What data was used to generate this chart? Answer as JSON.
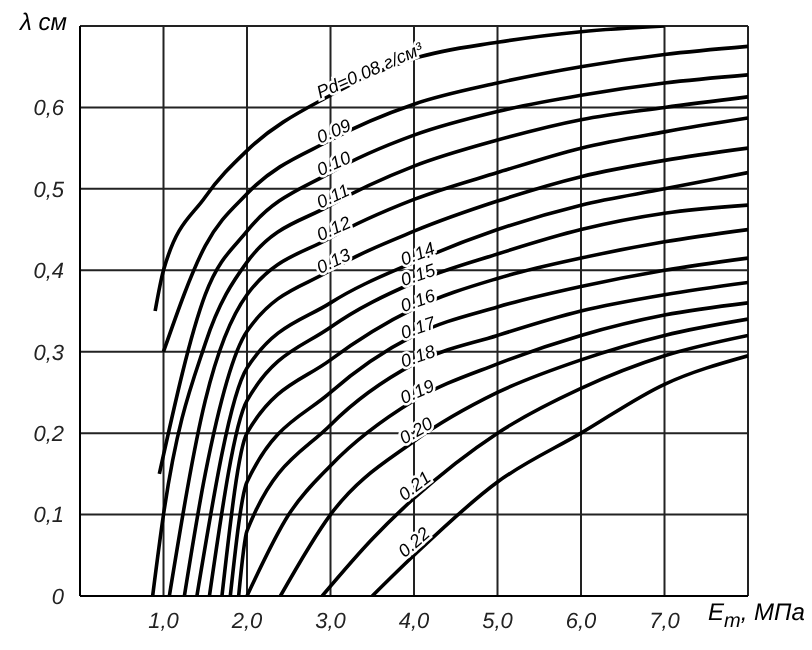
{
  "chart_data": {
    "type": "line",
    "xlabel": "E$_{т}$, МПа",
    "ylabel": "λ см",
    "xlim": [
      0,
      8
    ],
    "ylim": [
      0,
      0.7
    ],
    "xticks": [
      {
        "value": 0,
        "label": null
      },
      {
        "value": 1,
        "label": "1,0"
      },
      {
        "value": 2,
        "label": "2,0"
      },
      {
        "value": 3,
        "label": "3,0"
      },
      {
        "value": 4,
        "label": "4,0"
      },
      {
        "value": 5,
        "label": "5,0"
      },
      {
        "value": 6,
        "label": "6,0"
      },
      {
        "value": 7,
        "label": "7,0"
      },
      {
        "value": 8,
        "label": null
      }
    ],
    "yticks": [
      {
        "value": 0,
        "label": "0"
      },
      {
        "value": 0.1,
        "label": "0,1"
      },
      {
        "value": 0.2,
        "label": "0,2"
      },
      {
        "value": 0.3,
        "label": "0,3"
      },
      {
        "value": 0.4,
        "label": "0,4"
      },
      {
        "value": 0.5,
        "label": "0,5"
      },
      {
        "value": 0.6,
        "label": "0,6"
      }
    ],
    "grid": true,
    "legend": false,
    "marker": "none",
    "line_style": "solid",
    "series": [
      {
        "name": "Pd=0.08 г/см³",
        "color": "#000000",
        "x": [
          0.9,
          1,
          1.5,
          2,
          3,
          4,
          5,
          6,
          7
        ],
        "values": [
          0.35,
          0.4,
          0.49,
          0.547,
          0.615,
          0.66,
          0.68,
          0.693,
          0.7
        ]
      },
      {
        "name": "0.09",
        "color": "#000000",
        "x": [
          1,
          1.5,
          2,
          3,
          4,
          5,
          6,
          7,
          8
        ],
        "values": [
          0.3,
          0.43,
          0.494,
          0.56,
          0.604,
          0.63,
          0.65,
          0.665,
          0.675
        ]
      },
      {
        "name": "0.10",
        "color": "#000000",
        "x": [
          0.95,
          1.5,
          2,
          3,
          4,
          5,
          6,
          7,
          8
        ],
        "values": [
          0.15,
          0.37,
          0.448,
          0.52,
          0.566,
          0.595,
          0.615,
          0.63,
          0.64
        ]
      },
      {
        "name": "0.11",
        "color": "#000000",
        "x": [
          0.87,
          1,
          1.5,
          2,
          3,
          4,
          5,
          6,
          7,
          8
        ],
        "values": [
          0,
          0.1,
          0.31,
          0.41,
          0.48,
          0.528,
          0.56,
          0.585,
          0.6,
          0.613
        ]
      },
      {
        "name": "0.12",
        "color": "#000000",
        "x": [
          1.07,
          1.5,
          2,
          3,
          4,
          5,
          6,
          7,
          8
        ],
        "values": [
          0,
          0.24,
          0.37,
          0.44,
          0.487,
          0.52,
          0.55,
          0.57,
          0.587
        ]
      },
      {
        "name": "0.13",
        "color": "#000000",
        "x": [
          1.25,
          1.5,
          2,
          3,
          4,
          5,
          6,
          7,
          8
        ],
        "values": [
          0,
          0.15,
          0.325,
          0.4,
          0.448,
          0.485,
          0.515,
          0.535,
          0.55
        ]
      },
      {
        "name": "0.14",
        "color": "#000000",
        "x": [
          1.4,
          2,
          3,
          4,
          5,
          6,
          7,
          8
        ],
        "values": [
          0,
          0.28,
          0.36,
          0.41,
          0.45,
          0.48,
          0.5,
          0.52
        ]
      },
      {
        "name": "0.15",
        "color": "#000000",
        "x": [
          1.55,
          2,
          3,
          4,
          5,
          6,
          7,
          8
        ],
        "values": [
          0,
          0.24,
          0.33,
          0.385,
          0.42,
          0.45,
          0.47,
          0.48
        ]
      },
      {
        "name": "0.16",
        "color": "#000000",
        "x": [
          1.7,
          2,
          3,
          4,
          5,
          6,
          7,
          8
        ],
        "values": [
          0,
          0.2,
          0.29,
          0.353,
          0.39,
          0.415,
          0.435,
          0.45
        ]
      },
      {
        "name": "0.17",
        "color": "#000000",
        "x": [
          1.8,
          2,
          3,
          4,
          5,
          6,
          7,
          8
        ],
        "values": [
          0,
          0.14,
          0.25,
          0.32,
          0.355,
          0.38,
          0.4,
          0.415
        ]
      },
      {
        "name": "0.18",
        "color": "#000000",
        "x": [
          1.9,
          2,
          3,
          4,
          5,
          6,
          7,
          8
        ],
        "values": [
          0,
          0.08,
          0.21,
          0.285,
          0.32,
          0.35,
          0.37,
          0.385
        ]
      },
      {
        "name": "0.19",
        "color": "#000000",
        "x": [
          2,
          2.5,
          3,
          4,
          5,
          6,
          7,
          8
        ],
        "values": [
          0,
          0.1,
          0.16,
          0.24,
          0.285,
          0.32,
          0.345,
          0.36
        ]
      },
      {
        "name": "0.20",
        "color": "#000000",
        "x": [
          2.4,
          3,
          4,
          5,
          6,
          7,
          8
        ],
        "values": [
          0,
          0.1,
          0.19,
          0.25,
          0.29,
          0.32,
          0.34
        ]
      },
      {
        "name": "0.21",
        "color": "#000000",
        "x": [
          2.9,
          3.5,
          4,
          5,
          6,
          7,
          8
        ],
        "values": [
          0,
          0.07,
          0.12,
          0.2,
          0.255,
          0.295,
          0.32
        ]
      },
      {
        "name": "0.22",
        "color": "#000000",
        "x": [
          3.5,
          4,
          5,
          6,
          7,
          8
        ],
        "values": [
          0,
          0.05,
          0.14,
          0.2,
          0.26,
          0.295
        ]
      }
    ]
  }
}
